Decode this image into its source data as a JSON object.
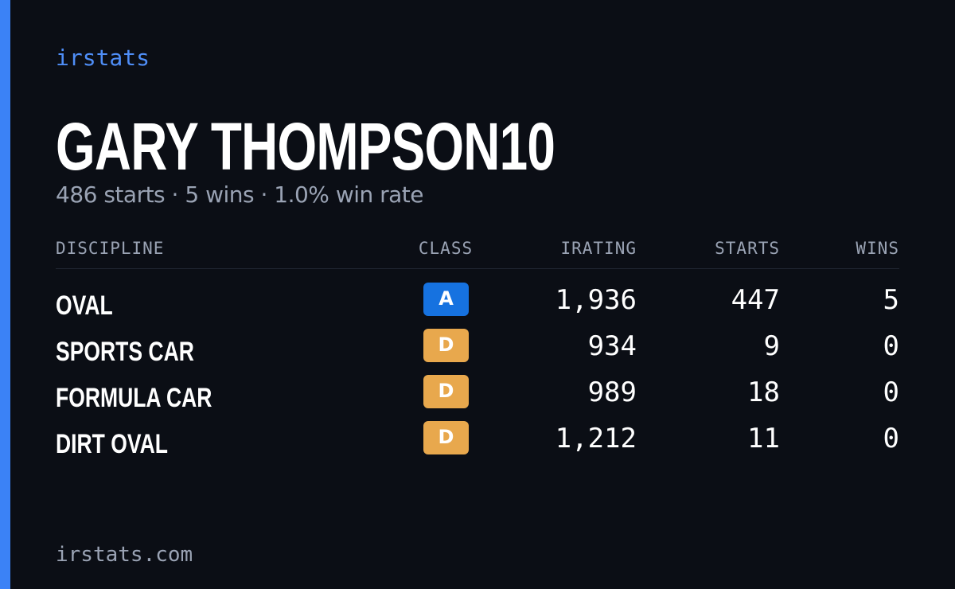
{
  "header": {
    "brand": "irstats",
    "name": "GARY THOMPSON10",
    "subtitle": "486 starts · 5 wins · 1.0% win rate"
  },
  "table": {
    "columns": [
      "DISCIPLINE",
      "CLASS",
      "IRATING",
      "STARTS",
      "WINS"
    ],
    "rows": [
      {
        "discipline": "OVAL",
        "class": "A",
        "class_color": "#1672e0",
        "irating": "1,936",
        "starts": "447",
        "wins": "5"
      },
      {
        "discipline": "SPORTS CAR",
        "class": "D",
        "class_color": "#e8a84d",
        "irating": "934",
        "starts": "9",
        "wins": "0"
      },
      {
        "discipline": "FORMULA CAR",
        "class": "D",
        "class_color": "#e8a84d",
        "irating": "989",
        "starts": "18",
        "wins": "0"
      },
      {
        "discipline": "DIRT OVAL",
        "class": "D",
        "class_color": "#e8a84d",
        "irating": "1,212",
        "starts": "11",
        "wins": "0"
      }
    ]
  },
  "footer": {
    "url": "irstats.com"
  }
}
